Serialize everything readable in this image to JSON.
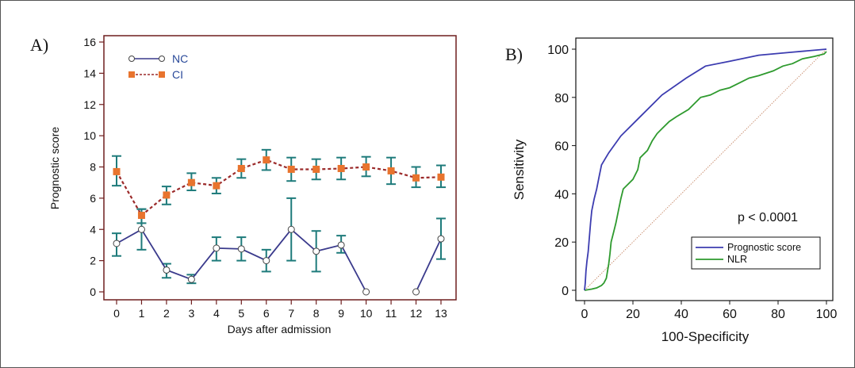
{
  "chart_data": [
    {
      "type": "line",
      "panel_label": "A)",
      "xlabel": "Days after admission",
      "ylabel": "Prognostic score",
      "categories": [
        "0",
        "1",
        "2",
        "3",
        "4",
        "5",
        "6",
        "7",
        "8",
        "9",
        "10",
        "11",
        "12",
        "13"
      ],
      "ylim": [
        0,
        16
      ],
      "yticks": [
        0,
        2,
        4,
        6,
        8,
        10,
        12,
        14,
        16
      ],
      "legend_position": "top-left",
      "series": [
        {
          "name": "NC",
          "color": "#3a3a8c",
          "marker": "open-circle",
          "line_style": "solid",
          "values": [
            3.1,
            4.0,
            1.4,
            0.8,
            2.8,
            2.75,
            2.0,
            4.0,
            2.6,
            3.0,
            0,
            null,
            0,
            3.4
          ],
          "error_low": [
            2.3,
            2.7,
            0.9,
            0.55,
            2.0,
            2.0,
            1.3,
            2.0,
            1.3,
            2.5,
            null,
            null,
            null,
            2.1
          ],
          "error_high": [
            3.75,
            5.3,
            1.8,
            1.1,
            3.5,
            3.5,
            2.7,
            6.0,
            3.9,
            3.6,
            null,
            null,
            null,
            4.7
          ]
        },
        {
          "name": "CI",
          "color": "#9b2a2a",
          "marker_color": "#e8742e",
          "marker": "filled-square",
          "line_style": "dashed",
          "values": [
            7.7,
            4.9,
            6.2,
            7.0,
            6.8,
            7.9,
            8.45,
            7.85,
            7.85,
            7.9,
            8.0,
            7.75,
            7.3,
            7.35
          ],
          "error_low": [
            6.8,
            4.4,
            5.6,
            6.5,
            6.3,
            7.3,
            7.8,
            7.1,
            7.2,
            7.2,
            7.4,
            6.9,
            6.7,
            6.7
          ],
          "error_high": [
            8.7,
            5.3,
            6.75,
            7.6,
            7.3,
            8.5,
            9.1,
            8.6,
            8.5,
            8.6,
            8.65,
            8.6,
            8.0,
            8.1
          ]
        }
      ],
      "errorbar_color": "#1e7b7b",
      "frame_color": "#6e1f1f"
    },
    {
      "type": "line",
      "panel_label": "B)",
      "xlabel": "100-Specificity",
      "ylabel": "Sensitivity",
      "xlim": [
        0,
        100
      ],
      "ylim": [
        0,
        100
      ],
      "xticks": [
        0,
        20,
        40,
        60,
        80,
        100
      ],
      "yticks": [
        0,
        20,
        40,
        60,
        80,
        100
      ],
      "annotation": "p < 0.0001",
      "legend_position": "bottom-right",
      "series": [
        {
          "name": "Prognostic score",
          "color": "#3c3cb0",
          "points": [
            [
              0,
              0
            ],
            [
              0.3,
              3
            ],
            [
              0.6,
              8
            ],
            [
              1,
              12
            ],
            [
              1.5,
              16
            ],
            [
              2,
              22
            ],
            [
              2.5,
              28
            ],
            [
              3,
              33
            ],
            [
              4,
              38
            ],
            [
              5,
              42
            ],
            [
              6,
              47
            ],
            [
              7,
              52
            ],
            [
              10,
              57
            ],
            [
              15,
              64
            ],
            [
              22,
              71
            ],
            [
              32,
              81
            ],
            [
              42,
              88
            ],
            [
              50,
              93
            ],
            [
              60,
              95
            ],
            [
              72,
              97.5
            ],
            [
              85,
              98.7
            ],
            [
              100,
              100
            ]
          ]
        },
        {
          "name": "NLR",
          "color": "#2e9a2e",
          "points": [
            [
              0,
              0
            ],
            [
              3,
              0.5
            ],
            [
              5,
              1
            ],
            [
              7,
              2
            ],
            [
              8,
              3
            ],
            [
              9,
              5
            ],
            [
              9.5,
              8
            ],
            [
              10,
              11
            ],
            [
              10.5,
              15
            ],
            [
              11,
              20
            ],
            [
              12,
              24
            ],
            [
              13,
              28
            ],
            [
              14,
              33
            ],
            [
              15,
              38
            ],
            [
              16,
              42
            ],
            [
              18,
              44
            ],
            [
              20,
              46
            ],
            [
              22,
              50
            ],
            [
              23,
              55
            ],
            [
              26,
              58
            ],
            [
              28,
              62
            ],
            [
              30,
              65
            ],
            [
              32,
              67
            ],
            [
              35,
              70
            ],
            [
              38,
              72
            ],
            [
              43,
              75
            ],
            [
              46,
              78
            ],
            [
              48,
              80
            ],
            [
              52,
              81
            ],
            [
              56,
              83
            ],
            [
              60,
              84
            ],
            [
              64,
              86
            ],
            [
              68,
              88
            ],
            [
              72,
              89
            ],
            [
              78,
              91
            ],
            [
              82,
              93
            ],
            [
              86,
              94
            ],
            [
              90,
              96
            ],
            [
              95,
              97
            ],
            [
              99,
              98
            ],
            [
              100,
              99
            ]
          ]
        },
        {
          "name": "reference",
          "color": "#c88a6a",
          "line_style": "dotted",
          "points": [
            [
              0,
              0
            ],
            [
              100,
              100
            ]
          ]
        }
      ]
    }
  ]
}
